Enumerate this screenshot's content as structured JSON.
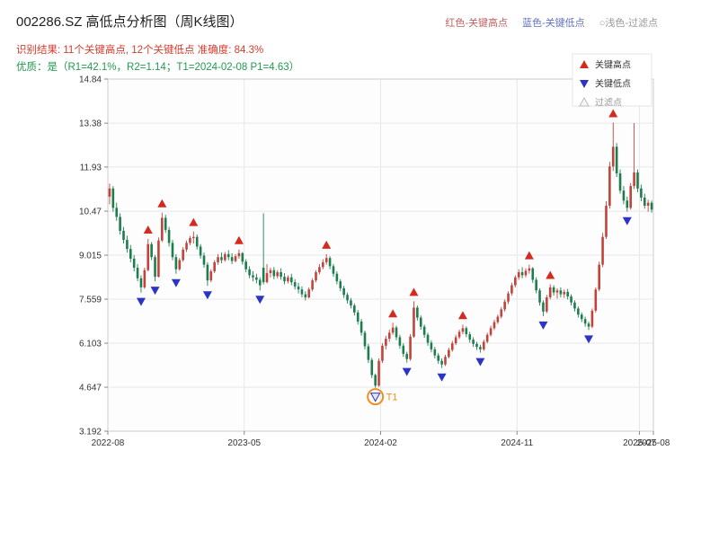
{
  "header": {
    "title": "002286.SZ 高低点分析图（周K线图）",
    "legend_high": "红色-关键高点",
    "legend_low": "蓝色-关键低点",
    "legend_filter": "○浅色-过滤点",
    "result_line": "识别结果: 11个关键高点, 12个关键低点  准确度: 84.3%",
    "quality_line": "优质：是（R1=42.1%，R2=1.14；T1=2024-02-08 P1=4.63）"
  },
  "chart_data": {
    "type": "candlestick",
    "title": "002286.SZ 高低点分析图（周K线图）",
    "xlabel": "",
    "ylabel": "",
    "ylim": [
      3.192,
      14.84
    ],
    "yticks": [
      14.84,
      13.38,
      11.93,
      10.47,
      9.015,
      7.559,
      6.103,
      4.647,
      3.192
    ],
    "xticks": [
      {
        "week": 0,
        "label": "2022-08"
      },
      {
        "week": 39,
        "label": "2023-05"
      },
      {
        "week": 78,
        "label": "2024-02"
      },
      {
        "week": 117,
        "label": "2024-11"
      },
      {
        "week": 152,
        "label": "2025-07"
      },
      {
        "week": 156,
        "label": "2025-08"
      }
    ],
    "stats": {
      "num_key_highs": 11,
      "num_key_lows": 12,
      "accuracy_pct": 84.3,
      "quality": "是",
      "r1_pct": 42.1,
      "r2": 1.14,
      "t1_date": "2024-02-08",
      "p1": 4.63
    },
    "colors": {
      "up": "#c0443c",
      "down": "#1e7d4f",
      "key_high": "#d42a20",
      "key_low": "#2b34c4",
      "filter": "#bbbbbb",
      "t1": "#ee8f1f",
      "grid": "#e7e7e7",
      "frame": "#cccccc"
    },
    "legend": [
      {
        "label": "关键高点",
        "shape": "triangle-up",
        "color": "#d42a20",
        "text_color": "#333333"
      },
      {
        "label": "关键低点",
        "shape": "triangle-down",
        "color": "#2b34c4",
        "text_color": "#333333"
      },
      {
        "label": "过滤点",
        "shape": "triangle-up-hollow",
        "color": "#bbbbbb",
        "text_color": "#999999"
      }
    ],
    "key_highs": [
      [
        11,
        9.55
      ],
      [
        15,
        10.42
      ],
      [
        24,
        9.8
      ],
      [
        37,
        9.2
      ],
      [
        62,
        9.05
      ],
      [
        81,
        6.78
      ],
      [
        87,
        7.49
      ],
      [
        101,
        6.72
      ],
      [
        120,
        8.7
      ],
      [
        126,
        8.05
      ],
      [
        144,
        13.4
      ]
    ],
    "key_lows": [
      [
        9,
        7.78
      ],
      [
        13,
        8.15
      ],
      [
        19,
        8.4
      ],
      [
        28,
        8.0
      ],
      [
        43,
        7.85
      ],
      [
        76,
        4.63
      ],
      [
        85,
        5.46
      ],
      [
        95,
        5.28
      ],
      [
        106,
        5.79
      ],
      [
        124,
        7.0
      ],
      [
        137,
        6.54
      ],
      [
        148,
        10.45
      ]
    ],
    "t1": {
      "index": 76,
      "price": 4.63,
      "label": "T1",
      "date": "2024-02-08"
    },
    "candles": [
      [
        10.95,
        11.38,
        10.7,
        11.22
      ],
      [
        11.22,
        11.3,
        10.45,
        10.58
      ],
      [
        10.58,
        10.75,
        10.15,
        10.28
      ],
      [
        10.28,
        10.4,
        9.7,
        9.82
      ],
      [
        9.82,
        9.95,
        9.4,
        9.52
      ],
      [
        9.52,
        9.66,
        9.1,
        9.22
      ],
      [
        9.22,
        9.35,
        8.78,
        8.9
      ],
      [
        8.9,
        9.02,
        8.48,
        8.6
      ],
      [
        8.6,
        8.72,
        8.15,
        8.25
      ],
      [
        8.25,
        8.35,
        7.78,
        7.95
      ],
      [
        7.95,
        8.6,
        7.9,
        8.52
      ],
      [
        8.52,
        9.55,
        8.48,
        9.38
      ],
      [
        9.38,
        9.45,
        8.85,
        8.95
      ],
      [
        8.95,
        9.02,
        8.15,
        8.3
      ],
      [
        8.3,
        9.6,
        8.28,
        9.5
      ],
      [
        9.5,
        10.42,
        9.45,
        10.25
      ],
      [
        10.25,
        10.35,
        9.75,
        9.85
      ],
      [
        9.85,
        9.95,
        9.3,
        9.42
      ],
      [
        9.42,
        9.52,
        8.85,
        8.95
      ],
      [
        8.95,
        9.05,
        8.4,
        8.55
      ],
      [
        8.55,
        8.92,
        8.5,
        8.85
      ],
      [
        8.85,
        9.28,
        8.8,
        9.2
      ],
      [
        9.2,
        9.5,
        9.12,
        9.42
      ],
      [
        9.42,
        9.65,
        9.35,
        9.58
      ],
      [
        9.58,
        9.8,
        9.4,
        9.62
      ],
      [
        9.62,
        9.7,
        9.2,
        9.3
      ],
      [
        9.3,
        9.38,
        8.9,
        9.0
      ],
      [
        9.0,
        9.1,
        8.6,
        8.7
      ],
      [
        8.7,
        8.78,
        8.0,
        8.18
      ],
      [
        8.18,
        8.55,
        8.12,
        8.48
      ],
      [
        8.48,
        8.85,
        8.42,
        8.78
      ],
      [
        8.78,
        9.05,
        8.7,
        8.95
      ],
      [
        8.95,
        9.1,
        8.75,
        8.85
      ],
      [
        8.85,
        9.12,
        8.8,
        9.05
      ],
      [
        9.05,
        9.18,
        8.85,
        8.95
      ],
      [
        8.95,
        9.08,
        8.72,
        8.82
      ],
      [
        8.82,
        9.05,
        8.78,
        8.98
      ],
      [
        8.98,
        9.2,
        8.9,
        9.08
      ],
      [
        9.08,
        9.12,
        8.7,
        8.8
      ],
      [
        8.8,
        8.88,
        8.45,
        8.55
      ],
      [
        8.55,
        8.65,
        8.25,
        8.35
      ],
      [
        8.35,
        8.48,
        8.15,
        8.28
      ],
      [
        8.28,
        8.4,
        8.08,
        8.2
      ],
      [
        8.2,
        8.28,
        7.85,
        8.02
      ],
      [
        8.6,
        10.4,
        8.05,
        8.12
      ],
      [
        8.12,
        8.72,
        8.08,
        8.42
      ],
      [
        8.42,
        8.6,
        8.28,
        8.52
      ],
      [
        8.52,
        8.62,
        8.22,
        8.32
      ],
      [
        8.32,
        8.52,
        8.25,
        8.45
      ],
      [
        8.45,
        8.58,
        8.2,
        8.3
      ],
      [
        8.3,
        8.42,
        8.05,
        8.15
      ],
      [
        8.15,
        8.35,
        8.08,
        8.28
      ],
      [
        8.28,
        8.4,
        8.02,
        8.12
      ],
      [
        8.12,
        8.22,
        7.88,
        7.98
      ],
      [
        7.98,
        8.1,
        7.75,
        7.88
      ],
      [
        7.88,
        7.98,
        7.62,
        7.72
      ],
      [
        7.72,
        7.82,
        7.52,
        7.62
      ],
      [
        7.62,
        7.95,
        7.58,
        7.88
      ],
      [
        7.88,
        8.25,
        7.82,
        8.18
      ],
      [
        8.18,
        8.52,
        8.12,
        8.45
      ],
      [
        8.45,
        8.72,
        8.38,
        8.62
      ],
      [
        8.62,
        8.88,
        8.55,
        8.78
      ],
      [
        8.78,
        9.05,
        8.7,
        8.92
      ],
      [
        8.92,
        8.98,
        8.55,
        8.65
      ],
      [
        8.65,
        8.72,
        8.3,
        8.4
      ],
      [
        8.4,
        8.48,
        8.05,
        8.15
      ],
      [
        8.15,
        8.22,
        7.82,
        7.92
      ],
      [
        7.92,
        8.0,
        7.6,
        7.7
      ],
      [
        7.7,
        7.78,
        7.42,
        7.52
      ],
      [
        7.52,
        7.6,
        7.25,
        7.35
      ],
      [
        7.35,
        7.42,
        7.02,
        7.12
      ],
      [
        7.12,
        7.2,
        6.72,
        6.82
      ],
      [
        6.82,
        6.9,
        6.35,
        6.45
      ],
      [
        6.45,
        6.52,
        5.9,
        6.0
      ],
      [
        6.0,
        6.08,
        5.45,
        5.55
      ],
      [
        5.55,
        5.62,
        4.95,
        5.05
      ],
      [
        5.05,
        5.1,
        4.63,
        4.7
      ],
      [
        4.7,
        5.6,
        4.66,
        5.52
      ],
      [
        5.52,
        6.1,
        5.45,
        6.02
      ],
      [
        6.02,
        6.35,
        5.9,
        6.25
      ],
      [
        6.25,
        6.55,
        6.15,
        6.45
      ],
      [
        6.45,
        6.78,
        6.38,
        6.62
      ],
      [
        6.62,
        6.68,
        6.2,
        6.3
      ],
      [
        6.3,
        6.38,
        5.92,
        6.02
      ],
      [
        6.02,
        6.1,
        5.65,
        5.75
      ],
      [
        5.75,
        5.82,
        5.46,
        5.58
      ],
      [
        5.58,
        6.4,
        5.52,
        6.32
      ],
      [
        6.32,
        7.49,
        6.28,
        7.28
      ],
      [
        7.28,
        7.35,
        6.85,
        6.95
      ],
      [
        6.95,
        7.02,
        6.55,
        6.65
      ],
      [
        6.65,
        6.72,
        6.28,
        6.38
      ],
      [
        6.38,
        6.45,
        6.02,
        6.12
      ],
      [
        6.12,
        6.2,
        5.8,
        5.9
      ],
      [
        5.9,
        5.98,
        5.6,
        5.7
      ],
      [
        5.7,
        5.78,
        5.42,
        5.52
      ],
      [
        5.52,
        5.6,
        5.28,
        5.4
      ],
      [
        5.4,
        5.72,
        5.35,
        5.65
      ],
      [
        5.65,
        5.95,
        5.6,
        5.88
      ],
      [
        5.88,
        6.18,
        5.82,
        6.1
      ],
      [
        6.1,
        6.38,
        6.04,
        6.3
      ],
      [
        6.3,
        6.55,
        6.24,
        6.48
      ],
      [
        6.48,
        6.72,
        6.4,
        6.6
      ],
      [
        6.6,
        6.66,
        6.3,
        6.4
      ],
      [
        6.4,
        6.48,
        6.12,
        6.22
      ],
      [
        6.22,
        6.3,
        5.98,
        6.08
      ],
      [
        6.08,
        6.15,
        5.88,
        5.98
      ],
      [
        5.98,
        6.05,
        5.79,
        5.9
      ],
      [
        5.9,
        6.22,
        5.85,
        6.15
      ],
      [
        6.15,
        6.45,
        6.1,
        6.38
      ],
      [
        6.38,
        6.68,
        6.32,
        6.6
      ],
      [
        6.6,
        6.88,
        6.54,
        6.8
      ],
      [
        6.8,
        7.05,
        6.74,
        6.98
      ],
      [
        6.98,
        7.3,
        6.92,
        7.22
      ],
      [
        7.22,
        7.55,
        7.15,
        7.48
      ],
      [
        7.48,
        7.82,
        7.4,
        7.75
      ],
      [
        7.75,
        8.1,
        7.68,
        8.02
      ],
      [
        8.02,
        8.35,
        7.95,
        8.28
      ],
      [
        8.28,
        8.55,
        8.2,
        8.45
      ],
      [
        8.45,
        8.62,
        8.25,
        8.35
      ],
      [
        8.35,
        8.58,
        8.28,
        8.5
      ],
      [
        8.5,
        8.7,
        8.4,
        8.58
      ],
      [
        8.58,
        8.62,
        8.1,
        8.2
      ],
      [
        8.2,
        8.28,
        7.75,
        7.85
      ],
      [
        7.85,
        7.92,
        7.35,
        7.45
      ],
      [
        7.45,
        7.52,
        7.0,
        7.15
      ],
      [
        7.15,
        7.7,
        7.1,
        7.62
      ],
      [
        7.62,
        8.05,
        7.55,
        7.95
      ],
      [
        7.95,
        8.02,
        7.68,
        7.78
      ],
      [
        7.78,
        7.92,
        7.58,
        7.85
      ],
      [
        7.85,
        7.95,
        7.62,
        7.72
      ],
      [
        7.72,
        7.88,
        7.6,
        7.8
      ],
      [
        7.8,
        7.9,
        7.55,
        7.65
      ],
      [
        7.65,
        7.72,
        7.35,
        7.45
      ],
      [
        7.45,
        7.52,
        7.15,
        7.25
      ],
      [
        7.25,
        7.32,
        6.95,
        7.05
      ],
      [
        7.05,
        7.12,
        6.8,
        6.9
      ],
      [
        6.9,
        6.98,
        6.65,
        6.75
      ],
      [
        6.75,
        6.82,
        6.54,
        6.65
      ],
      [
        6.65,
        7.25,
        6.6,
        7.18
      ],
      [
        7.18,
        7.95,
        7.12,
        7.88
      ],
      [
        7.88,
        8.8,
        7.82,
        8.7
      ],
      [
        8.7,
        9.75,
        8.62,
        9.62
      ],
      [
        9.62,
        10.8,
        9.55,
        10.65
      ],
      [
        10.65,
        12.1,
        10.55,
        11.95
      ],
      [
        11.95,
        13.4,
        11.8,
        12.6
      ],
      [
        12.6,
        12.72,
        11.6,
        11.72
      ],
      [
        11.72,
        11.85,
        11.05,
        11.15
      ],
      [
        11.15,
        11.3,
        10.7,
        10.82
      ],
      [
        10.82,
        10.95,
        10.45,
        10.58
      ],
      [
        10.58,
        11.4,
        10.52,
        11.3
      ],
      [
        11.3,
        13.38,
        11.2,
        11.75
      ],
      [
        11.75,
        11.85,
        11.1,
        11.22
      ],
      [
        11.22,
        11.35,
        10.8,
        10.92
      ],
      [
        10.92,
        11.05,
        10.55,
        10.65
      ],
      [
        10.65,
        10.85,
        10.45,
        10.75
      ],
      [
        10.75,
        10.82,
        10.42,
        10.52
      ]
    ]
  }
}
